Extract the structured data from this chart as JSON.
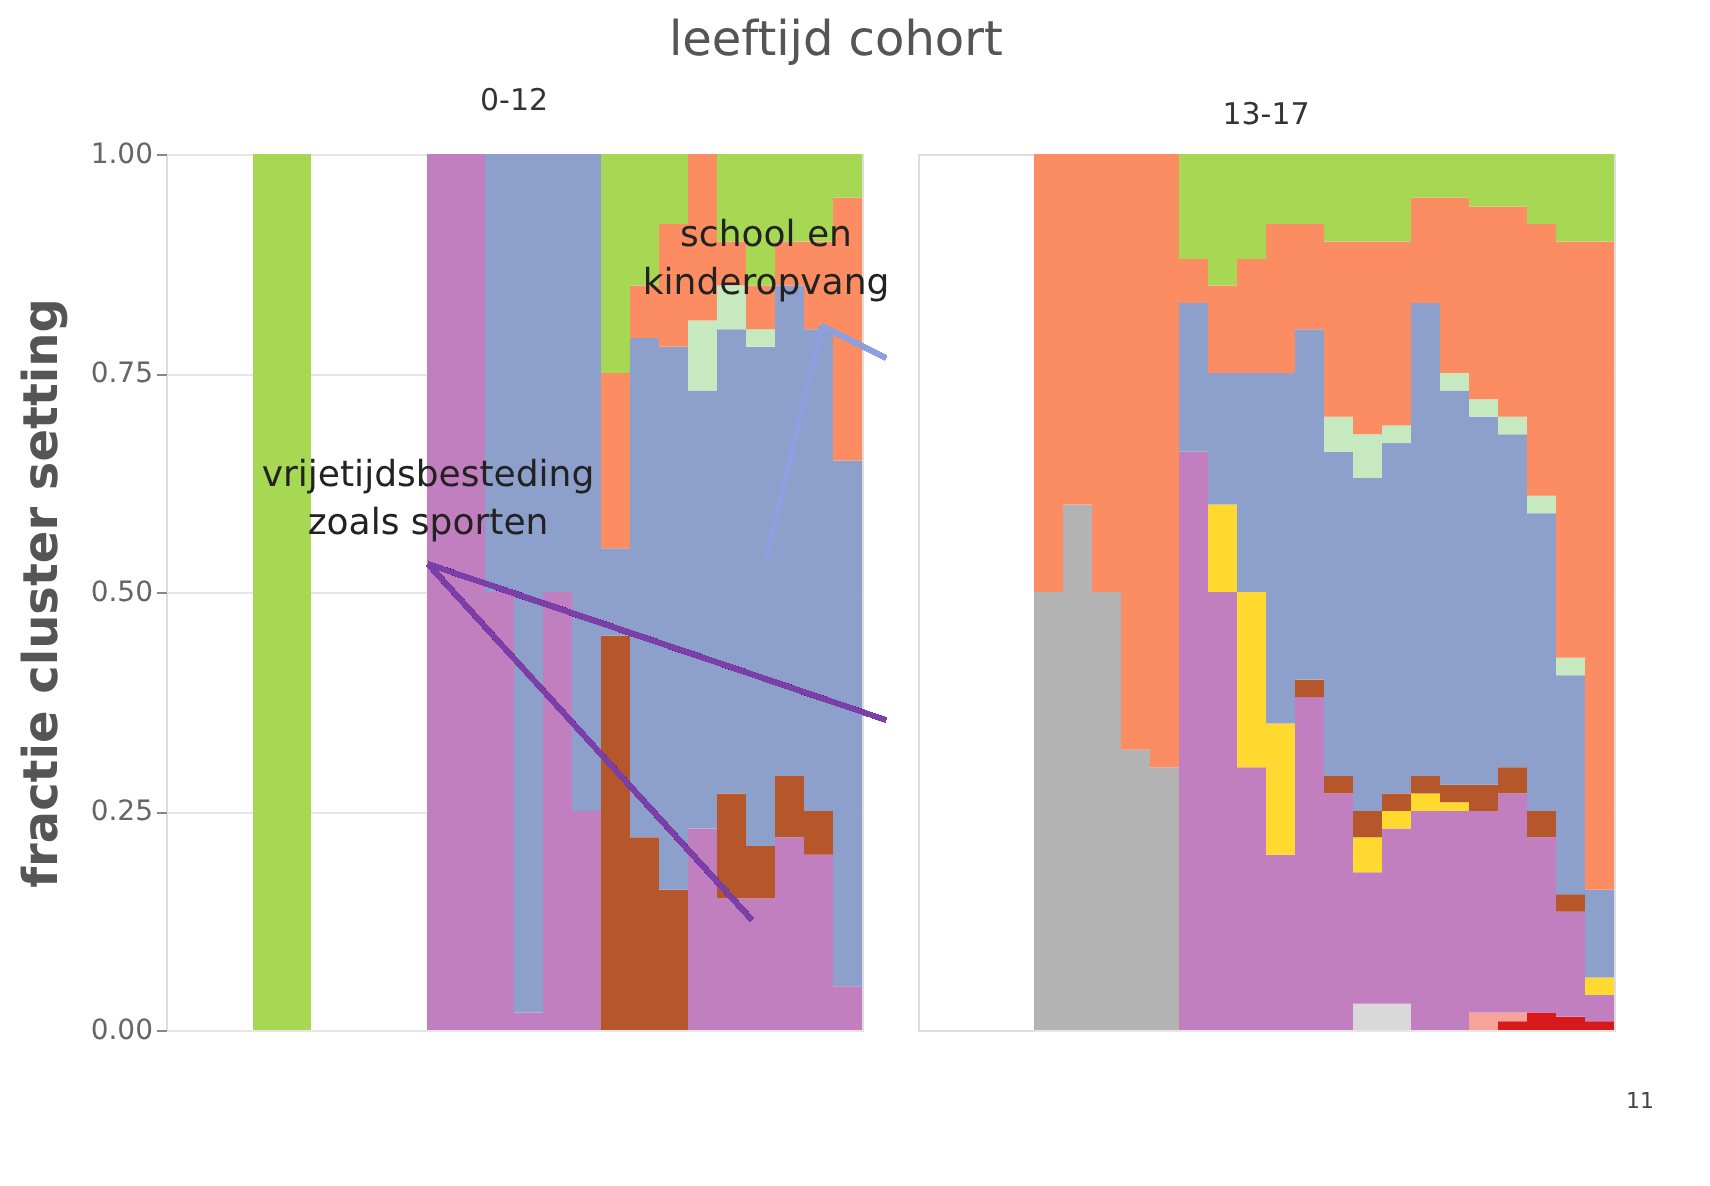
{
  "chart_data": [
    {
      "type": "bar",
      "stacked": true,
      "title": "0-12",
      "ylabel": "fractie cluster setting",
      "grid": "y",
      "tick_labels": "y",
      "annotations": [
        "leeftijd cohort",
        "vrijetijdsbesteding zoals sporten",
        "school en kinderopvang"
      ],
      "categories": [
        null,
        null,
        null,
        null,
        null,
        null,
        null,
        null,
        null,
        null,
        null,
        null,
        null,
        null,
        null,
        null,
        null,
        null,
        null,
        null,
        null,
        null,
        null,
        null
      ],
      "ylim": [
        0,
        1
      ],
      "yticks": [
        {
          "value": 0,
          "label": "0.00"
        },
        {
          "value": 0.25,
          "label": "0.25"
        },
        {
          "value": 0.5,
          "label": "0.50"
        },
        {
          "value": 0.75,
          "label": "0.75"
        },
        {
          "value": 1,
          "label": "1.00"
        }
      ],
      "series": [
        {
          "color": "#c27fc0",
          "values": [
            0,
            0,
            0,
            0,
            0,
            0,
            0,
            0,
            0,
            1,
            1,
            0.5,
            0.02,
            0.5,
            0.25,
            0,
            0,
            0,
            0.23,
            0.15,
            0.15,
            0.22,
            0.2,
            0.05
          ]
        },
        {
          "color": "#b5562b",
          "values": [
            0,
            0,
            0,
            0,
            0,
            0,
            0,
            0,
            0,
            0,
            0,
            0,
            0,
            0,
            0,
            0.45,
            0.22,
            0.16,
            0,
            0.12,
            0.06,
            0.07,
            0.05,
            0
          ]
        },
        {
          "color": "#8da0cb",
          "values": [
            0,
            0,
            0,
            0,
            0,
            0,
            0,
            0,
            0,
            0,
            0,
            0.5,
            0.98,
            0.5,
            0.75,
            0.1,
            0.57,
            0.62,
            0.5,
            0.53,
            0.57,
            0.56,
            0.55,
            0.6
          ]
        },
        {
          "color": "#c7e9c0",
          "values": [
            0,
            0,
            0,
            0,
            0,
            0,
            0,
            0,
            0,
            0,
            0,
            0,
            0,
            0,
            0,
            0,
            0,
            0,
            0.08,
            0.05,
            0.02,
            0,
            0,
            0
          ]
        },
        {
          "color": "#fc8d62",
          "values": [
            0,
            0,
            0,
            0,
            0,
            0,
            0,
            0,
            0,
            0,
            0,
            0,
            0,
            0,
            0,
            0.2,
            0.06,
            0.14,
            0.19,
            0.05,
            0.05,
            0.05,
            0.1,
            0.3
          ]
        },
        {
          "color": "#a6d854",
          "values": [
            0,
            0,
            0,
            1,
            1,
            0,
            0,
            0,
            0,
            0,
            0,
            0,
            0,
            0,
            0,
            0.25,
            0.15,
            0.08,
            0,
            0.1,
            0.15,
            0.1,
            0.1,
            0.05
          ]
        }
      ]
    },
    {
      "type": "bar",
      "stacked": true,
      "title": "13-17",
      "grid": "y",
      "tick_labels": false,
      "annotations": [
        "11"
      ],
      "categories": [
        null,
        null,
        null,
        null,
        null,
        null,
        null,
        null,
        null,
        null,
        null,
        null,
        null,
        null,
        null,
        null,
        null,
        null,
        null,
        null
      ],
      "ylim": [
        0,
        1
      ],
      "yticks": [
        0,
        0.25,
        0.5,
        0.75,
        1
      ],
      "series": [
        {
          "color": "#b3b3b3",
          "values": [
            0.5,
            0.6,
            0.5,
            0.32,
            0.3,
            null,
            null,
            null,
            null,
            null,
            null,
            null,
            null,
            null,
            null,
            null,
            null,
            null,
            null,
            null
          ]
        },
        {
          "color": "#d7191c",
          "values": [
            null,
            null,
            null,
            null,
            null,
            null,
            null,
            null,
            null,
            null,
            null,
            null,
            null,
            null,
            null,
            null,
            0.01,
            0.02,
            0.015,
            0.01
          ]
        },
        {
          "color": "#f8a39a",
          "values": [
            null,
            null,
            null,
            null,
            null,
            null,
            null,
            null,
            null,
            null,
            null,
            null,
            null,
            null,
            null,
            0.02,
            0.01,
            null,
            null,
            null
          ]
        },
        {
          "color": "#d9d9d9",
          "values": [
            null,
            null,
            null,
            null,
            null,
            null,
            null,
            null,
            null,
            null,
            null,
            0.03,
            0.03,
            null,
            null,
            null,
            null,
            null,
            null,
            null
          ]
        },
        {
          "color": "#c27fc0",
          "values": [
            null,
            null,
            null,
            null,
            null,
            0.66,
            0.5,
            0.3,
            0.2,
            0.38,
            0.27,
            0.15,
            0.2,
            0.25,
            0.25,
            0.23,
            0.25,
            0.2,
            0.12,
            0.03
          ]
        },
        {
          "color": "#ffd92f",
          "values": [
            null,
            null,
            null,
            null,
            null,
            null,
            0.1,
            0.2,
            0.15,
            null,
            null,
            0.04,
            0.02,
            0.02,
            0.01,
            null,
            null,
            null,
            null,
            0.02
          ]
        },
        {
          "color": "#b5562b",
          "values": [
            null,
            null,
            null,
            null,
            null,
            null,
            null,
            null,
            null,
            0.02,
            0.02,
            0.03,
            0.02,
            0.02,
            0.02,
            0.03,
            0.03,
            0.03,
            0.02,
            null
          ]
        },
        {
          "color": "#8da0cb",
          "values": [
            null,
            null,
            null,
            null,
            null,
            0.17,
            0.15,
            0.25,
            0.4,
            0.4,
            0.37,
            0.38,
            0.4,
            0.54,
            0.45,
            0.42,
            0.38,
            0.34,
            0.25,
            0.1
          ]
        },
        {
          "color": "#c7e9c0",
          "values": [
            null,
            null,
            null,
            null,
            null,
            null,
            null,
            null,
            null,
            null,
            0.04,
            0.05,
            0.02,
            null,
            0.02,
            0.02,
            0.02,
            0.02,
            0.02,
            null
          ]
        },
        {
          "color": "#fc8d62",
          "values": [
            0.5,
            0.4,
            0.5,
            0.68,
            0.7,
            0.05,
            0.1,
            0.13,
            0.17,
            0.12,
            0.2,
            0.22,
            0.21,
            0.12,
            0.2,
            0.22,
            0.24,
            0.31,
            0.475,
            0.74
          ]
        },
        {
          "color": "#a6d854",
          "values": [
            null,
            null,
            null,
            null,
            null,
            0.12,
            0.15,
            0.12,
            0.08,
            0.08,
            0.1,
            0.1,
            0.1,
            0.05,
            0.05,
            0.06,
            0.06,
            0.08,
            0.1,
            0.1
          ]
        }
      ]
    }
  ]
}
